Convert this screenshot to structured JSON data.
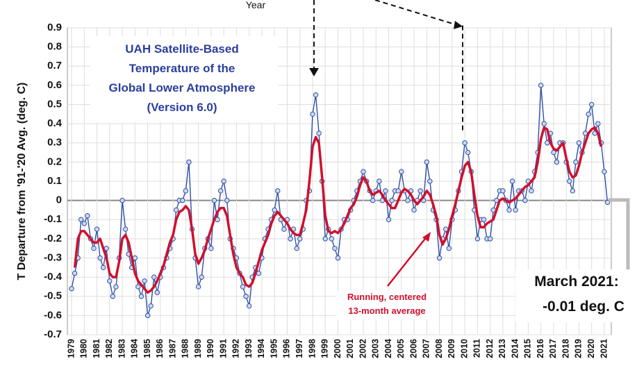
{
  "chart_data": {
    "type": "line",
    "title_lines": [
      "UAH Satellite-Based",
      "Temperature of the",
      "Global Lower Atmosphere",
      "(Version 6.0)"
    ],
    "y_label": "T Departure from '91-'20 Avg. (deg. C)",
    "annotations": [
      "Year",
      "Running, centered",
      "13-month average",
      "March 2021:",
      "-0.01 deg. C"
    ],
    "xlim": [
      1978.67,
      2021.55
    ],
    "ylim": [
      -0.7,
      0.9
    ],
    "xticks": [
      1979,
      1980,
      1981,
      1982,
      1983,
      1984,
      1985,
      1986,
      1987,
      1988,
      1989,
      1990,
      1991,
      1992,
      1993,
      1994,
      1995,
      1996,
      1997,
      1998,
      1999,
      2000,
      2001,
      2002,
      2003,
      2004,
      2005,
      2006,
      2007,
      2008,
      2009,
      2010,
      2011,
      2012,
      2013,
      2014,
      2015,
      2016,
      2017,
      2018,
      2019,
      2020,
      2021
    ],
    "yticks": [
      -0.7,
      -0.6,
      -0.5,
      -0.4,
      -0.3,
      -0.2,
      -0.1,
      0,
      0.1,
      0.2,
      0.3,
      0.4,
      0.5,
      0.6,
      0.7,
      0.8,
      0.9
    ],
    "grid": true,
    "x": [
      1979,
      1979.25,
      1979.5,
      1979.75,
      1980,
      1980.25,
      1980.5,
      1980.75,
      1981,
      1981.25,
      1981.5,
      1981.75,
      1982,
      1982.25,
      1982.5,
      1982.75,
      1983,
      1983.25,
      1983.5,
      1983.75,
      1984,
      1984.25,
      1984.5,
      1984.75,
      1985,
      1985.25,
      1985.5,
      1985.75,
      1986,
      1986.25,
      1986.5,
      1986.75,
      1987,
      1987.25,
      1987.5,
      1987.75,
      1988,
      1988.25,
      1988.5,
      1988.75,
      1989,
      1989.25,
      1989.5,
      1989.75,
      1990,
      1990.25,
      1990.5,
      1990.75,
      1991,
      1991.25,
      1991.5,
      1991.75,
      1992,
      1992.25,
      1992.5,
      1992.75,
      1993,
      1993.25,
      1993.5,
      1993.75,
      1994,
      1994.25,
      1994.5,
      1994.75,
      1995,
      1995.25,
      1995.5,
      1995.75,
      1996,
      1996.25,
      1996.5,
      1996.75,
      1997,
      1997.25,
      1997.5,
      1997.75,
      1998,
      1998.25,
      1998.5,
      1998.75,
      1999,
      1999.25,
      1999.5,
      1999.75,
      2000,
      2000.25,
      2000.5,
      2000.75,
      2001,
      2001.25,
      2001.5,
      2001.75,
      2002,
      2002.25,
      2002.5,
      2002.75,
      2003,
      2003.25,
      2003.5,
      2003.75,
      2004,
      2004.25,
      2004.5,
      2004.75,
      2005,
      2005.25,
      2005.5,
      2005.75,
      2006,
      2006.25,
      2006.5,
      2006.75,
      2007,
      2007.25,
      2007.5,
      2007.75,
      2008,
      2008.25,
      2008.5,
      2008.75,
      2009,
      2009.25,
      2009.5,
      2009.75,
      2010,
      2010.25,
      2010.5,
      2010.75,
      2011,
      2011.25,
      2011.5,
      2011.75,
      2012,
      2012.25,
      2012.5,
      2012.75,
      2013,
      2013.25,
      2013.5,
      2013.75,
      2014,
      2014.25,
      2014.5,
      2014.75,
      2015,
      2015.25,
      2015.5,
      2015.75,
      2016,
      2016.25,
      2016.5,
      2016.75,
      2017,
      2017.25,
      2017.5,
      2017.75,
      2018,
      2018.25,
      2018.5,
      2018.75,
      2019,
      2019.25,
      2019.5,
      2019.75,
      2020,
      2020.25,
      2020.5,
      2020.75,
      2021,
      2021.25
    ],
    "series": [
      {
        "color": "#2f4fa8",
        "values": [
          -0.46,
          -0.38,
          -0.3,
          -0.1,
          -0.12,
          -0.08,
          -0.2,
          -0.25,
          -0.15,
          -0.3,
          -0.35,
          -0.25,
          -0.42,
          -0.5,
          -0.45,
          -0.3,
          0.0,
          -0.15,
          -0.28,
          -0.35,
          -0.3,
          -0.45,
          -0.5,
          -0.42,
          -0.6,
          -0.55,
          -0.4,
          -0.48,
          -0.4,
          -0.35,
          -0.3,
          -0.25,
          -0.2,
          -0.05,
          0.0,
          0.0,
          0.05,
          0.2,
          -0.15,
          -0.3,
          -0.45,
          -0.4,
          -0.25,
          -0.2,
          -0.25,
          0.0,
          -0.1,
          0.05,
          0.1,
          0.0,
          -0.2,
          -0.25,
          -0.3,
          -0.38,
          -0.45,
          -0.5,
          -0.55,
          -0.4,
          -0.35,
          -0.38,
          -0.3,
          -0.2,
          -0.15,
          -0.1,
          -0.05,
          0.05,
          -0.1,
          -0.15,
          -0.1,
          -0.2,
          -0.15,
          -0.25,
          -0.2,
          -0.15,
          0.0,
          0.05,
          0.45,
          0.55,
          0.35,
          0.1,
          -0.2,
          -0.15,
          -0.2,
          -0.25,
          -0.3,
          -0.15,
          -0.1,
          -0.1,
          -0.05,
          0.0,
          0.05,
          0.1,
          0.15,
          0.1,
          0.05,
          0.0,
          0.05,
          0.1,
          0.0,
          0.05,
          -0.1,
          0.0,
          0.05,
          0.05,
          0.15,
          0.05,
          0.0,
          0.05,
          -0.05,
          0.0,
          0.05,
          0.0,
          0.2,
          0.1,
          -0.05,
          -0.1,
          -0.3,
          -0.2,
          -0.15,
          -0.25,
          -0.1,
          -0.05,
          0.05,
          0.15,
          0.3,
          0.25,
          0.15,
          -0.05,
          -0.2,
          -0.1,
          -0.1,
          -0.2,
          -0.2,
          -0.05,
          0.0,
          0.05,
          0.05,
          0.0,
          -0.05,
          0.1,
          -0.05,
          0.05,
          0.05,
          0.0,
          0.1,
          0.05,
          0.15,
          0.25,
          0.6,
          0.4,
          0.3,
          0.35,
          0.25,
          0.2,
          0.3,
          0.3,
          0.2,
          0.1,
          0.05,
          0.2,
          0.3,
          0.25,
          0.35,
          0.45,
          0.5,
          0.35,
          0.4,
          0.3,
          0.15,
          -0.01
        ]
      },
      {
        "color": "#d0102c",
        "values": [
          null,
          -0.35,
          -0.2,
          -0.16,
          -0.16,
          -0.18,
          -0.2,
          -0.22,
          -0.22,
          -0.2,
          -0.25,
          -0.3,
          -0.38,
          -0.4,
          -0.4,
          -0.32,
          -0.2,
          -0.18,
          -0.22,
          -0.3,
          -0.38,
          -0.42,
          -0.44,
          -0.46,
          -0.48,
          -0.47,
          -0.45,
          -0.42,
          -0.38,
          -0.34,
          -0.28,
          -0.22,
          -0.18,
          -0.1,
          -0.06,
          -0.05,
          -0.03,
          -0.05,
          -0.15,
          -0.28,
          -0.33,
          -0.3,
          -0.26,
          -0.2,
          -0.15,
          -0.1,
          -0.06,
          -0.04,
          -0.04,
          -0.08,
          -0.18,
          -0.28,
          -0.35,
          -0.38,
          -0.4,
          -0.44,
          -0.45,
          -0.43,
          -0.38,
          -0.32,
          -0.26,
          -0.22,
          -0.18,
          -0.12,
          -0.08,
          -0.06,
          -0.08,
          -0.1,
          -0.12,
          -0.15,
          -0.17,
          -0.18,
          -0.18,
          -0.12,
          -0.05,
          0.1,
          0.28,
          0.33,
          0.3,
          0.12,
          -0.08,
          -0.16,
          -0.17,
          -0.16,
          -0.17,
          -0.15,
          -0.12,
          -0.08,
          -0.04,
          -0.02,
          0.02,
          0.08,
          0.12,
          0.1,
          0.05,
          0.03,
          0.04,
          0.05,
          0.03,
          0.0,
          -0.02,
          -0.04,
          -0.04,
          0.0,
          0.04,
          0.06,
          0.05,
          0.03,
          0.0,
          -0.02,
          0.0,
          0.02,
          0.05,
          0.03,
          -0.02,
          -0.08,
          -0.18,
          -0.23,
          -0.2,
          -0.15,
          -0.08,
          -0.02,
          0.05,
          0.12,
          0.18,
          0.2,
          0.15,
          0.03,
          -0.08,
          -0.14,
          -0.14,
          -0.12,
          -0.11,
          -0.1,
          -0.05,
          0.0,
          0.01,
          0.0,
          -0.01,
          0.0,
          0.01,
          0.03,
          0.05,
          0.07,
          0.08,
          0.1,
          0.12,
          0.2,
          0.32,
          0.38,
          0.37,
          0.3,
          0.27,
          0.26,
          0.28,
          0.3,
          0.22,
          0.15,
          0.12,
          0.13,
          0.18,
          0.25,
          0.3,
          0.35,
          0.37,
          0.38,
          0.35,
          0.28,
          null,
          null
        ]
      }
    ]
  }
}
